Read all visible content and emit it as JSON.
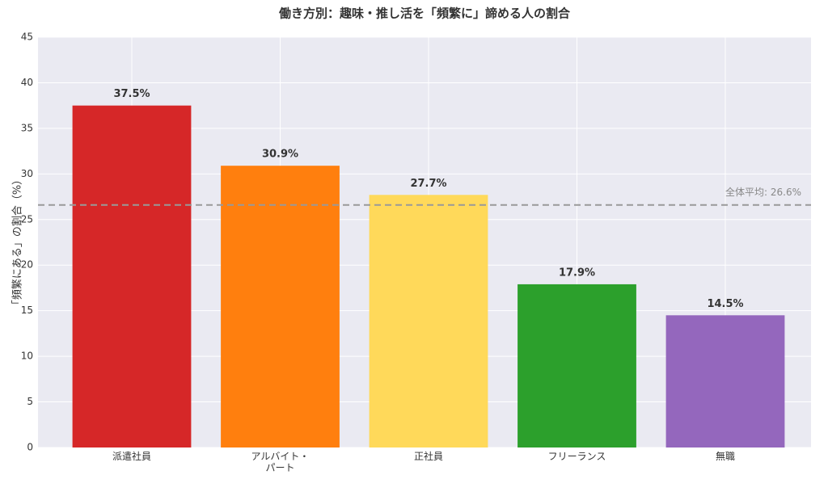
{
  "chart_data": {
    "type": "bar",
    "title": "働き方別：趣味・推し活を「頻繁に」諦める人の割合",
    "ylabel": "「頻繁にある」の割合（%）",
    "categories": [
      "派遣社員",
      "アルバイト・\nパート",
      "正社員",
      "フリーランス",
      "無職"
    ],
    "values": [
      37.5,
      30.9,
      27.7,
      17.9,
      14.5
    ],
    "value_labels": [
      "37.5%",
      "30.9%",
      "27.7%",
      "17.9%",
      "14.5%"
    ],
    "colors": [
      "#d62728",
      "#ff7f0e",
      "#ffd95a",
      "#2ca02c",
      "#9467bd"
    ],
    "average": 26.6,
    "average_label": "全体平均: 26.6%",
    "ylim": [
      0,
      45
    ],
    "yticks": [
      0,
      5,
      10,
      15,
      20,
      25,
      30,
      35,
      40,
      45
    ],
    "grid": true
  }
}
